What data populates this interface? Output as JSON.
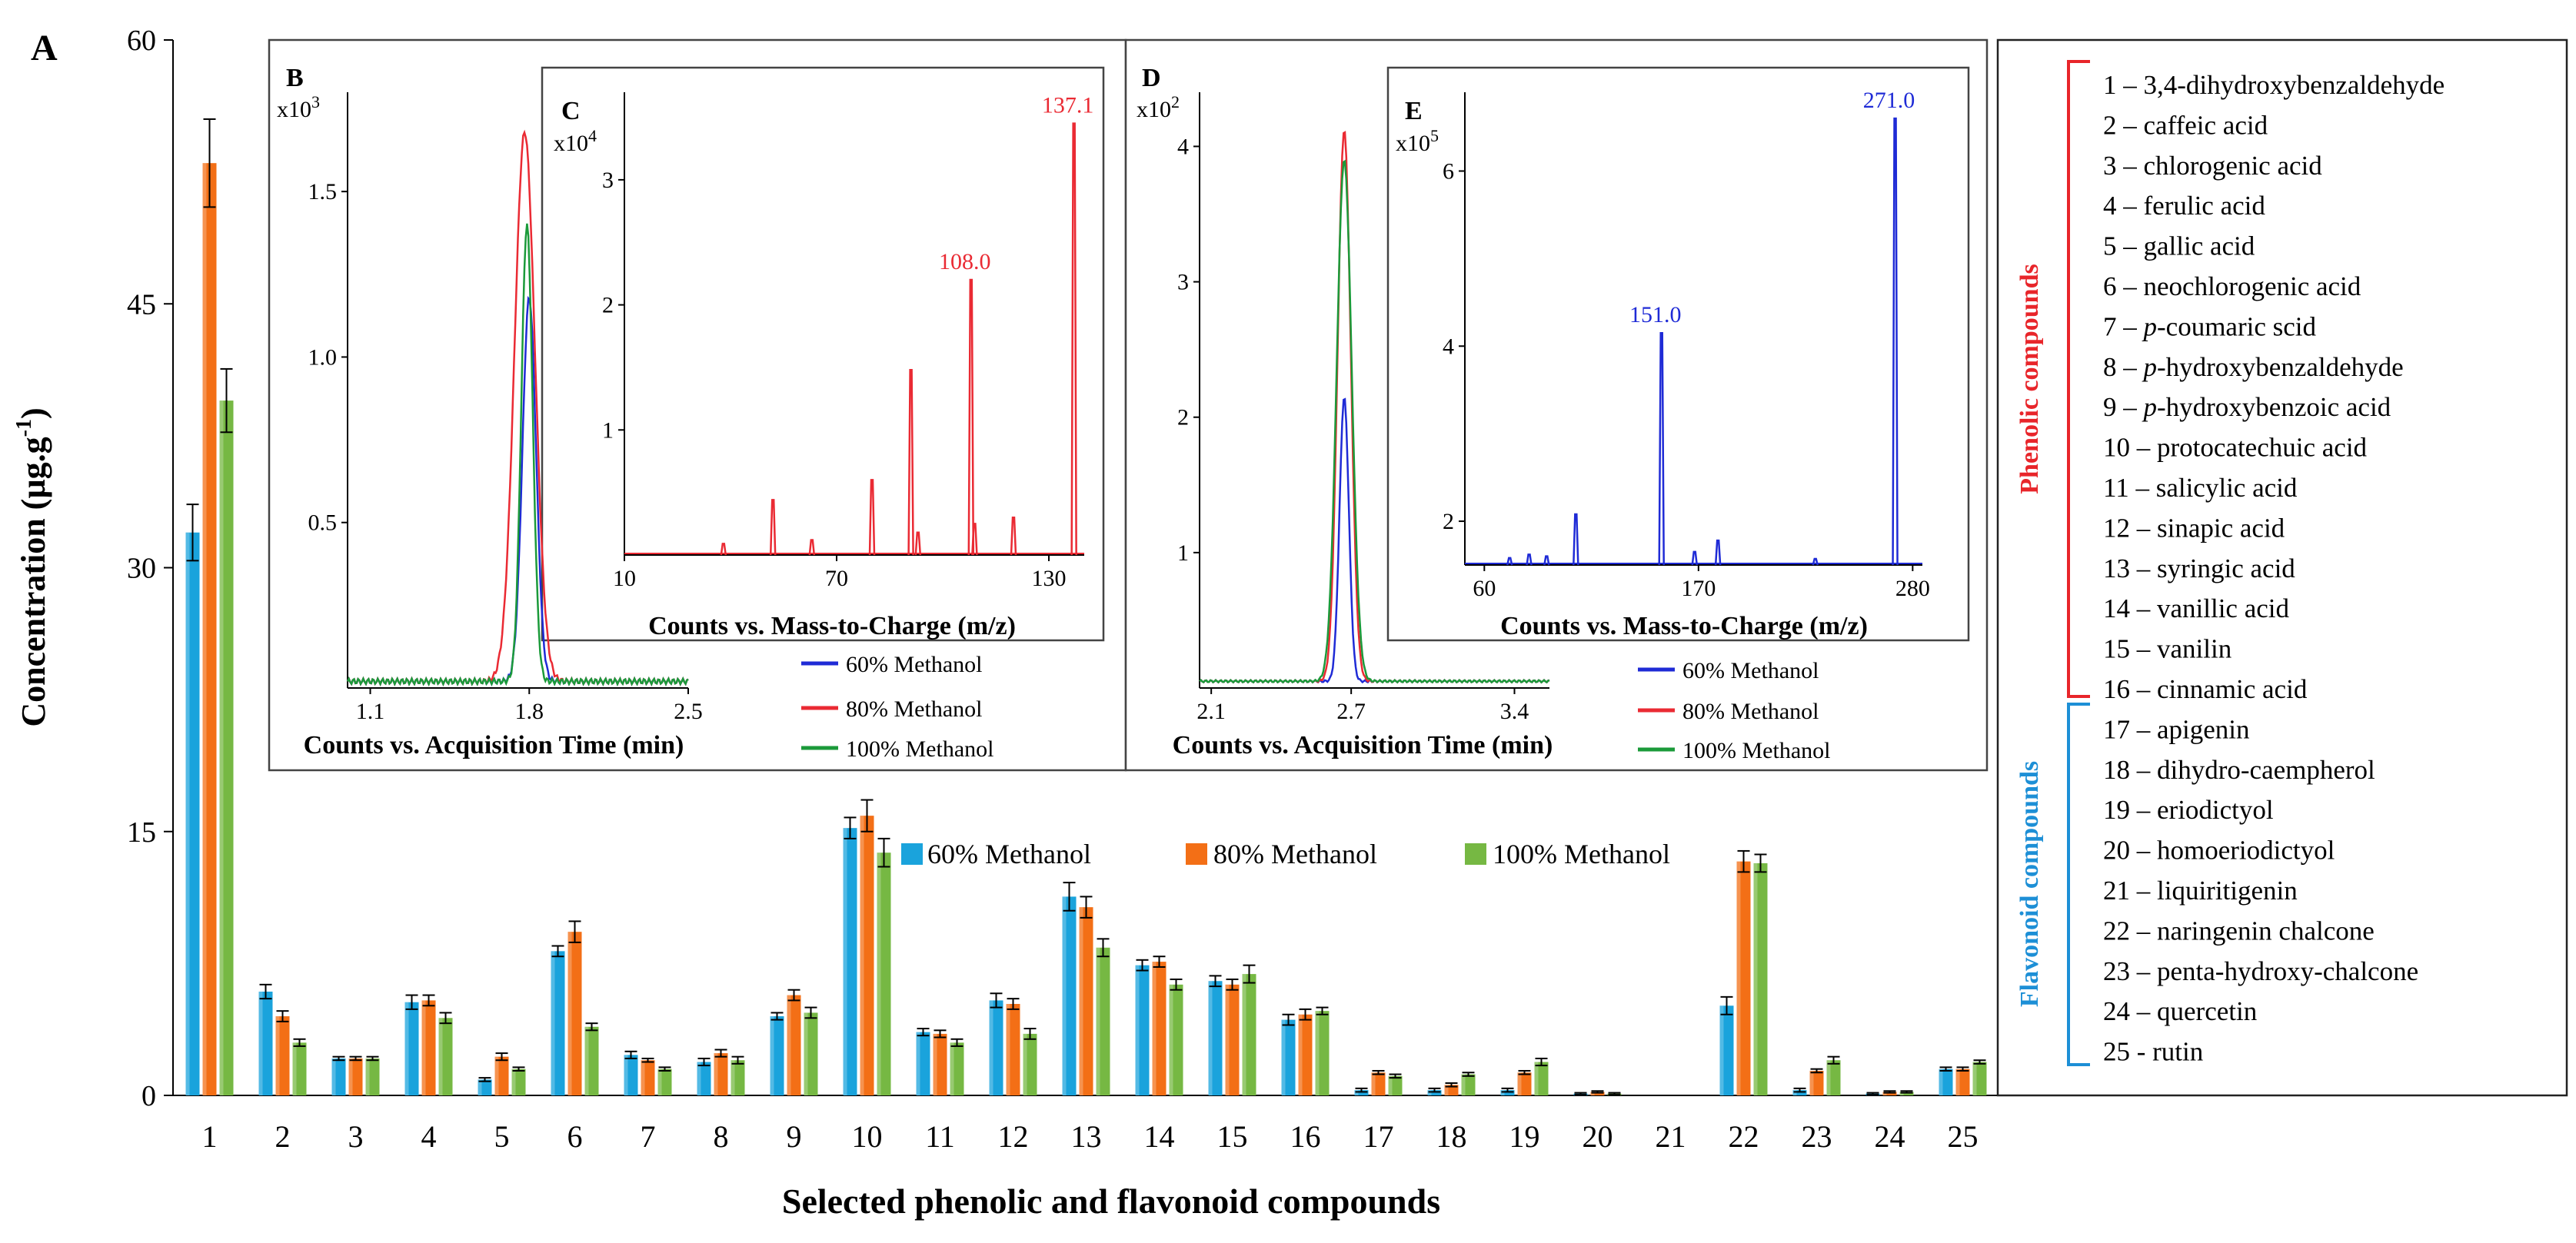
{
  "panel_label": "A",
  "colors": {
    "s60": "#1aa3dc",
    "s80": "#f36f16",
    "s100": "#76b843",
    "inset_blue": "#1f2bd6",
    "inset_red": "#ea2a33",
    "inset_green": "#1b9a3a",
    "phenolic": "#e8252a",
    "flavonoid": "#1d8fd6"
  },
  "chart_data": [
    {
      "id": "A",
      "type": "bar",
      "title": "",
      "xlabel": "Selected phenolic and flavonoid compounds",
      "ylabel_prefix": "Concentration (µg.g",
      "ylabel_sup": "-1",
      "ylabel_suffix": ")",
      "ylim": [
        0,
        60
      ],
      "yticks": [
        "0",
        "15",
        "30",
        "45",
        "60"
      ],
      "categories": [
        "1",
        "2",
        "3",
        "4",
        "5",
        "6",
        "7",
        "8",
        "9",
        "10",
        "11",
        "12",
        "13",
        "14",
        "15",
        "16",
        "17",
        "18",
        "19",
        "20",
        "21",
        "22",
        "23",
        "24",
        "25"
      ],
      "series": [
        {
          "name": "60% Methanol",
          "values": [
            32.0,
            5.9,
            2.1,
            5.3,
            0.9,
            8.2,
            2.3,
            1.9,
            4.5,
            15.2,
            3.6,
            5.4,
            11.3,
            7.4,
            6.5,
            4.3,
            0.3,
            0.3,
            0.3,
            0.1,
            0.0,
            5.1,
            0.3,
            0.1,
            1.5
          ]
        },
        {
          "name": "80% Methanol",
          "values": [
            53.0,
            4.5,
            2.1,
            5.4,
            2.2,
            9.3,
            2.0,
            2.4,
            5.7,
            15.9,
            3.5,
            5.2,
            10.7,
            7.6,
            6.3,
            4.6,
            1.3,
            0.6,
            1.3,
            0.2,
            0.0,
            13.3,
            1.4,
            0.2,
            1.5
          ]
        },
        {
          "name": "100% Methanol",
          "values": [
            39.5,
            3.0,
            2.1,
            4.4,
            1.5,
            3.9,
            1.5,
            2.0,
            4.7,
            13.8,
            3.0,
            3.5,
            8.4,
            6.3,
            6.9,
            4.8,
            1.1,
            1.2,
            1.9,
            0.1,
            0.0,
            13.2,
            2.0,
            0.2,
            1.9
          ]
        }
      ],
      "errors": [
        [
          1.6,
          0.4,
          0.1,
          0.4,
          0.1,
          0.3,
          0.2,
          0.2,
          0.2,
          0.6,
          0.2,
          0.4,
          0.8,
          0.3,
          0.3,
          0.3,
          0.1,
          0.1,
          0.1,
          0.05,
          0.0,
          0.5,
          0.1,
          0.05,
          0.1
        ],
        [
          2.5,
          0.3,
          0.1,
          0.3,
          0.2,
          0.6,
          0.1,
          0.2,
          0.3,
          0.9,
          0.2,
          0.3,
          0.6,
          0.3,
          0.3,
          0.3,
          0.1,
          0.1,
          0.1,
          0.05,
          0.0,
          0.6,
          0.1,
          0.05,
          0.1
        ],
        [
          1.8,
          0.2,
          0.1,
          0.3,
          0.1,
          0.2,
          0.1,
          0.2,
          0.3,
          0.8,
          0.2,
          0.3,
          0.5,
          0.3,
          0.5,
          0.2,
          0.1,
          0.1,
          0.2,
          0.05,
          0.0,
          0.5,
          0.2,
          0.05,
          0.1
        ]
      ],
      "legend": [
        "60% Methanol",
        "80% Methanol",
        "100% Methanol"
      ]
    },
    {
      "id": "B",
      "type": "line",
      "label": "B",
      "multiplier_base": "x10",
      "multiplier_exp": "3",
      "xlabel": "Counts vs. Acquisition Time (min)",
      "xlim": [
        1.0,
        2.5
      ],
      "ylim": [
        0,
        1.8
      ],
      "xticks": [
        "1.1",
        "1.8",
        "2.5"
      ],
      "yticks": [
        "0.5",
        "1.0",
        "1.5"
      ],
      "series": [
        {
          "name": "60% Methanol",
          "color_key": "inset_blue",
          "peak_x": 1.8,
          "peak_y": 1.18,
          "width": 0.03,
          "base": 0.02
        },
        {
          "name": "80% Methanol",
          "color_key": "inset_red",
          "peak_x": 1.78,
          "peak_y": 1.68,
          "width": 0.045,
          "base": 0.02
        },
        {
          "name": "100% Methanol",
          "color_key": "inset_green",
          "peak_x": 1.79,
          "peak_y": 1.4,
          "width": 0.025,
          "base": 0.02
        }
      ]
    },
    {
      "id": "C",
      "type": "line",
      "label": "C",
      "multiplier_base": "x10",
      "multiplier_exp": "4",
      "xlabel": "Counts vs. Mass-to-Charge (m/z)",
      "xlim": [
        10,
        140
      ],
      "ylim": [
        0,
        3.7
      ],
      "xticks": [
        "10",
        "70",
        "130"
      ],
      "yticks": [
        "1",
        "2",
        "3"
      ],
      "peaks": [
        [
          38,
          0.09
        ],
        [
          52,
          0.44
        ],
        [
          63,
          0.12
        ],
        [
          80,
          0.6
        ],
        [
          91,
          1.48
        ],
        [
          93,
          0.18
        ],
        [
          108,
          2.2
        ],
        [
          109,
          0.25
        ],
        [
          120,
          0.3
        ],
        [
          137.1,
          3.45
        ]
      ],
      "annotations": [
        "108.0",
        "137.1"
      ],
      "annotation_x": [
        108,
        137.1
      ]
    },
    {
      "id": "D",
      "type": "line",
      "label": "D",
      "multiplier_base": "x10",
      "multiplier_exp": "2",
      "xlabel": "Counts vs. Acquisition Time (min)",
      "xlim": [
        2.05,
        3.55
      ],
      "ylim": [
        0,
        4.4
      ],
      "xticks": [
        "2.1",
        "2.7",
        "3.4"
      ],
      "yticks": [
        "1",
        "2",
        "3",
        "4"
      ],
      "series": [
        {
          "name": "60% Methanol",
          "color_key": "inset_blue",
          "peak_x": 2.67,
          "peak_y": 2.15,
          "width": 0.02,
          "base": 0.05
        },
        {
          "name": "80% Methanol",
          "color_key": "inset_red",
          "peak_x": 2.67,
          "peak_y": 4.12,
          "width": 0.028,
          "base": 0.05
        },
        {
          "name": "100% Methanol",
          "color_key": "inset_green",
          "peak_x": 2.67,
          "peak_y": 3.9,
          "width": 0.032,
          "base": 0.05
        }
      ]
    },
    {
      "id": "E",
      "type": "line",
      "label": "E",
      "multiplier_base": "x10",
      "multiplier_exp": "5",
      "xlabel": "Counts vs. Mass-to-Charge (m/z)",
      "xlim": [
        50,
        285
      ],
      "ylim": [
        1.5,
        6.9
      ],
      "xticks": [
        "60",
        "170",
        "280"
      ],
      "yticks": [
        "2",
        "4",
        "6"
      ],
      "peaks": [
        [
          73,
          1.58
        ],
        [
          83,
          1.62
        ],
        [
          92,
          1.6
        ],
        [
          107,
          2.08
        ],
        [
          151,
          4.15
        ],
        [
          168,
          1.65
        ],
        [
          180,
          1.78
        ],
        [
          230,
          1.57
        ],
        [
          271,
          6.6
        ]
      ],
      "annotations": [
        "151.0",
        "271.0"
      ],
      "annotation_x": [
        151,
        271
      ]
    }
  ],
  "inset_legend": [
    "60% Methanol",
    "80% Methanol",
    "100% Methanol"
  ],
  "compound_list": [
    {
      "num": "1 – ",
      "ital": "",
      "rest": "3,4-dihydroxybenzaldehyde"
    },
    {
      "num": "2 – ",
      "ital": "",
      "rest": "caffeic acid"
    },
    {
      "num": "3 – ",
      "ital": "",
      "rest": "chlorogenic acid"
    },
    {
      "num": "4 – ",
      "ital": "",
      "rest": "ferulic  acid"
    },
    {
      "num": "5 – ",
      "ital": "",
      "rest": "gallic  acid"
    },
    {
      "num": "6 – ",
      "ital": "",
      "rest": "neochlorogenic acid"
    },
    {
      "num": "7 – ",
      "ital": "p",
      "rest": "-coumaric scid"
    },
    {
      "num": "8 – ",
      "ital": "p",
      "rest": "-hydroxybenzaldehyde"
    },
    {
      "num": "9 – ",
      "ital": "p",
      "rest": "-hydroxybenzoic acid"
    },
    {
      "num": "10 – ",
      "ital": "",
      "rest": "protocatechuic acid"
    },
    {
      "num": "11 – ",
      "ital": "",
      "rest": "salicylic  acid"
    },
    {
      "num": "12 – ",
      "ital": "",
      "rest": "sinapic acid"
    },
    {
      "num": "13 – ",
      "ital": "",
      "rest": "syringic acid"
    },
    {
      "num": "14 – ",
      "ital": "",
      "rest": "vanillic  acid"
    },
    {
      "num": "15 – ",
      "ital": "",
      "rest": "vanilin"
    },
    {
      "num": "16 – ",
      "ital": "",
      "rest": "cinnamic acid"
    },
    {
      "num": "17 – ",
      "ital": "",
      "rest": "apigenin"
    },
    {
      "num": "18 – ",
      "ital": "",
      "rest": "dihydro-caempherol"
    },
    {
      "num": "19 – ",
      "ital": "",
      "rest": "eriodictyol"
    },
    {
      "num": "20 – ",
      "ital": "",
      "rest": "homoeriodictyol"
    },
    {
      "num": "21 – ",
      "ital": "",
      "rest": "liquiritigenin"
    },
    {
      "num": "22 – ",
      "ital": "",
      "rest": "naringenin  chalcone"
    },
    {
      "num": "23 – ",
      "ital": "",
      "rest": "penta-hydroxy-chalcone"
    },
    {
      "num": "24 – ",
      "ital": "",
      "rest": "quercetin"
    },
    {
      "num": "25 ",
      "ital": "",
      "rest": "- rutin"
    }
  ],
  "group_labels": {
    "phenolic": "Phenolic compounds",
    "flavonoid": "Flavonoid compounds"
  }
}
